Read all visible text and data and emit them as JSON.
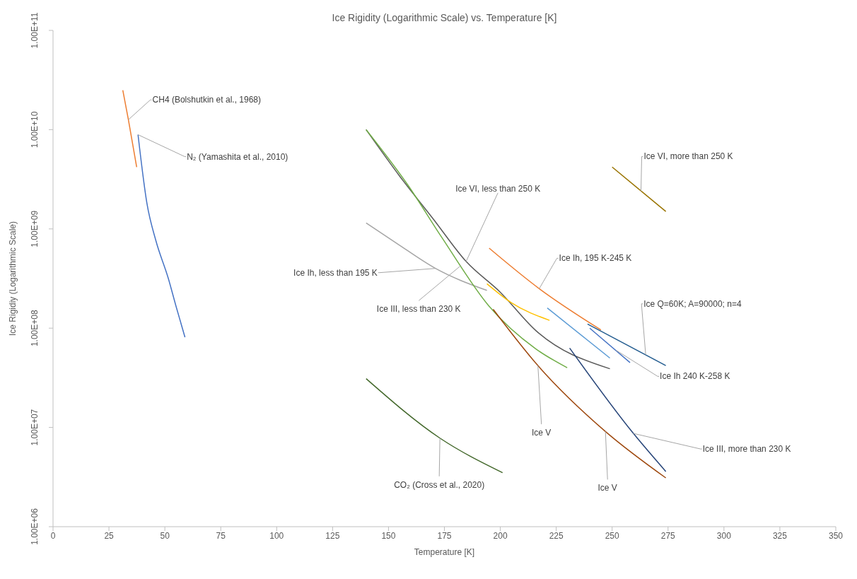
{
  "chart_data": {
    "type": "line",
    "title": "Ice Rigidity (Logarithmic Scale) vs. Temperature [K]",
    "xlabel": "Temperature [K]",
    "ylabel": "Ice Rigidiy (Logarithmic Scale)",
    "log": "y",
    "marker": "none",
    "line_style": "solid",
    "xlim": [
      0,
      350
    ],
    "xticks": [
      0,
      25,
      50,
      75,
      100,
      125,
      150,
      175,
      200,
      225,
      250,
      275,
      300,
      325,
      350
    ],
    "ylim": [
      1000000,
      100000000000
    ],
    "yticks": [
      {
        "value": 1000000,
        "label": "1.00E+06"
      },
      {
        "value": 10000000,
        "label": "1.00E+07"
      },
      {
        "value": 100000000,
        "label": "1.00E+08"
      },
      {
        "value": 1000000000,
        "label": "1.00E+09"
      },
      {
        "value": 10000000000,
        "label": "1.00E+10"
      },
      {
        "value": 100000000000,
        "label": "1.00E+11"
      }
    ],
    "series": [
      {
        "color": "#ed7d31",
        "x": [
          31.2,
          33.7,
          37.4
        ],
        "values": [
          25000000000,
          12600000000,
          4200000000
        ]
      },
      {
        "color": "#4472c4",
        "x": [
          38,
          42,
          46,
          51.5,
          55,
          59
        ],
        "values": [
          8900000000,
          1800000000,
          760000000,
          320000000,
          166000000,
          81000000
        ]
      },
      {
        "color": "#a5a5a5",
        "x": [
          140,
          153.5,
          171,
          194
        ],
        "values": [
          1150000000,
          720000000,
          400000000,
          240000000
        ]
      },
      {
        "color": "#595959",
        "x": [
          140,
          155,
          170,
          184.7,
          200,
          215.8,
          249
        ],
        "values": [
          10000000000,
          3400000000,
          1260000000,
          470000000,
          230000000,
          95000000,
          39000000
        ]
      },
      {
        "color": "#70ad47",
        "x": [
          140,
          158.5,
          174,
          195,
          215.8,
          229.9
        ],
        "values": [
          10000000000,
          2800000000,
          810000000,
          166000000,
          62000000,
          40000000
        ]
      },
      {
        "color": "#ffc000",
        "x": [
          194,
          205,
          222
        ],
        "values": [
          280000000,
          180000000,
          120000000
        ]
      },
      {
        "color": "#ed7d31",
        "x": [
          195,
          217.4,
          245
        ],
        "values": [
          640000000,
          250000000,
          96000000
        ]
      },
      {
        "color": "#5b9bd5",
        "x": [
          221,
          249
        ],
        "values": [
          160000000,
          50000000
        ]
      },
      {
        "color": "#4472c4",
        "x": [
          240,
          258
        ],
        "values": [
          100000000,
          45000000
        ]
      },
      {
        "color": "#255e91",
        "x": [
          239,
          274
        ],
        "values": [
          110000000,
          42000000
        ]
      },
      {
        "color": "#264478",
        "x": [
          231,
          259.5,
          274
        ],
        "values": [
          63000000,
          8700000,
          3600000
        ]
      },
      {
        "color": "#9e480e",
        "x": [
          196.8,
          216.8,
          247,
          274
        ],
        "values": [
          155000000,
          42000000,
          9100000,
          3100000
        ]
      },
      {
        "color": "#997300",
        "x": [
          250,
          274
        ],
        "values": [
          4200000000,
          1500000000
        ]
      },
      {
        "color": "#43682b",
        "x": [
          140,
          173,
          201
        ],
        "values": [
          31000000,
          7800000,
          3500000
        ]
      }
    ],
    "annotations": [
      {
        "text": "CH4 (Bolshutkin et al., 1968)",
        "x": 33.7,
        "y": 12600000000
      },
      {
        "text": "N₂ (Yamashita et al., 2010)",
        "x": 38,
        "y": 8900000000
      },
      {
        "text": "Ice Ih, less than 195 K",
        "x": 171,
        "y": 400000000
      },
      {
        "text": "Ice VI, less than 250 K",
        "x": 184.7,
        "y": 470000000
      },
      {
        "text": "Ice III, less than 230 K",
        "x": 182.5,
        "y": 430000000
      },
      {
        "text": "Ice Ih, 195 K-245 K",
        "x": 217.4,
        "y": 250000000
      },
      {
        "text": "Ice Q=60K; A=90000; n=4",
        "x": 265,
        "y": 54000000
      },
      {
        "text": "Ice Ih 240 K-258 K",
        "x": 251.7,
        "y": 60000000
      },
      {
        "text": "Ice III, more than 230 K",
        "x": 259.5,
        "y": 8700000
      },
      {
        "text": "Ice V",
        "x": 216.8,
        "y": 42000000
      },
      {
        "text": "Ice V",
        "x": 247,
        "y": 9100000
      },
      {
        "text": "Ice VI, more than 250 K",
        "x": 262.9,
        "y": 2400000000
      },
      {
        "text": "CO₂ (Cross et al., 2020)",
        "x": 173,
        "y": 7800000
      }
    ]
  }
}
